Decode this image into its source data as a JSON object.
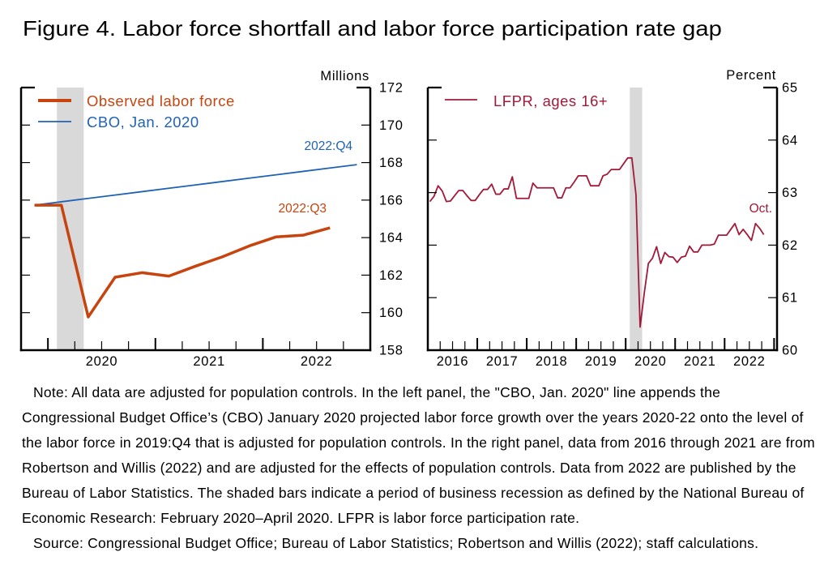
{
  "figure": {
    "title": "Figure 4. Labor force shortfall and labor force participation rate gap"
  },
  "notes": {
    "lines": [
      "Note: All data are adjusted for population controls. In the left panel, the \"CBO, Jan. 2020\" line appends the",
      "Congressional Budget Office’s (CBO) January 2020 projected labor force growth over the years 2020-22 onto the level of",
      "the labor force in 2019:Q4 that is adjusted for population controls. In the right panel, data from 2016 through 2021 are from",
      "Robertson and Willis (2022) and are adjusted for the effects of population controls. Data from 2022 are published by the",
      "Bureau of Labor Statistics. The shaded bars indicate a period of business recession as defined by the National Bureau of",
      "Economic Research: February 2020–April 2020. LFPR is labor force participation rate.",
      "Source: Congressional Budget Office; Bureau of Labor Statistics; Robertson and Willis (2022); staff calculations."
    ]
  },
  "chart_data": [
    {
      "type": "line",
      "panel": "left",
      "title": "",
      "xlabel": "",
      "ylabel": "Millions",
      "ylim": [
        158,
        172
      ],
      "yticks": [
        158,
        160,
        162,
        164,
        166,
        168,
        170,
        172
      ],
      "xlim": [
        "2019:Q4",
        "2022:Q4"
      ],
      "x_tick_labels": [
        "2020",
        "2021",
        "2022"
      ],
      "frequency": "quarterly",
      "grid": false,
      "recession_shading": {
        "start": "2020-02",
        "end": "2020-04",
        "color": "#D9D9D9"
      },
      "legend": {
        "placement": "top-left"
      },
      "series": [
        {
          "name": "Observed labor force",
          "color": "#C8440F",
          "end_label": "2022:Q3",
          "x": [
            "2019:Q4",
            "2020:Q1",
            "2020:Q2",
            "2020:Q3",
            "2020:Q4",
            "2021:Q1",
            "2021:Q2",
            "2021:Q3",
            "2021:Q4",
            "2022:Q1",
            "2022:Q2",
            "2022:Q3"
          ],
          "values": [
            165.73,
            165.73,
            159.77,
            161.89,
            162.13,
            161.95,
            162.48,
            162.98,
            163.56,
            164.04,
            164.13,
            164.52
          ]
        },
        {
          "name": "CBO, Jan. 2020",
          "color": "#1F62B5",
          "end_label": "2022:Q4",
          "x": [
            "2019:Q4",
            "2020:Q1",
            "2020:Q2",
            "2020:Q3",
            "2020:Q4",
            "2021:Q1",
            "2021:Q2",
            "2021:Q3",
            "2021:Q4",
            "2022:Q1",
            "2022:Q2",
            "2022:Q3",
            "2022:Q4"
          ],
          "values": [
            165.73,
            165.91,
            166.09,
            166.27,
            166.45,
            166.63,
            166.81,
            166.99,
            167.17,
            167.35,
            167.53,
            167.71,
            167.89
          ]
        }
      ]
    },
    {
      "type": "line",
      "panel": "right",
      "title": "",
      "xlabel": "",
      "ylabel": "Percent",
      "ylim": [
        60,
        65
      ],
      "yticks": [
        60,
        61,
        62,
        63,
        64,
        65
      ],
      "xlim": [
        "2016-01",
        "2022-12"
      ],
      "x_tick_labels": [
        "2016",
        "2017",
        "2018",
        "2019",
        "2020",
        "2021",
        "2022"
      ],
      "frequency": "monthly",
      "grid": false,
      "recession_shading": {
        "start": "2020-02",
        "end": "2020-04",
        "color": "#D9D9D9"
      },
      "legend": {
        "placement": "top-left"
      },
      "series": [
        {
          "name": "LFPR, ages 16+",
          "color": "#A21A3A",
          "end_label": "Oct.",
          "start": "2016-01",
          "values": [
            62.83,
            62.93,
            63.13,
            63.03,
            62.83,
            62.84,
            62.94,
            63.04,
            63.04,
            62.94,
            62.85,
            62.85,
            62.96,
            63.06,
            63.06,
            63.16,
            62.97,
            62.97,
            63.07,
            63.07,
            63.3,
            62.89,
            62.89,
            62.89,
            62.89,
            63.18,
            63.09,
            63.09,
            63.09,
            63.09,
            63.09,
            62.9,
            62.9,
            63.09,
            63.09,
            63.2,
            63.32,
            63.32,
            63.32,
            63.13,
            63.13,
            63.13,
            63.32,
            63.35,
            63.44,
            63.44,
            63.44,
            63.55,
            63.66,
            63.66,
            62.96,
            60.44,
            61.08,
            61.65,
            61.75,
            61.97,
            61.65,
            61.86,
            61.78,
            61.77,
            61.67,
            61.77,
            61.79,
            61.98,
            61.87,
            61.87,
            62.0,
            62.0,
            62.0,
            62.02,
            62.19,
            62.19,
            62.19,
            62.3,
            62.41,
            62.2,
            62.3,
            62.2,
            62.09,
            62.41,
            62.32,
            62.2
          ]
        }
      ]
    }
  ]
}
